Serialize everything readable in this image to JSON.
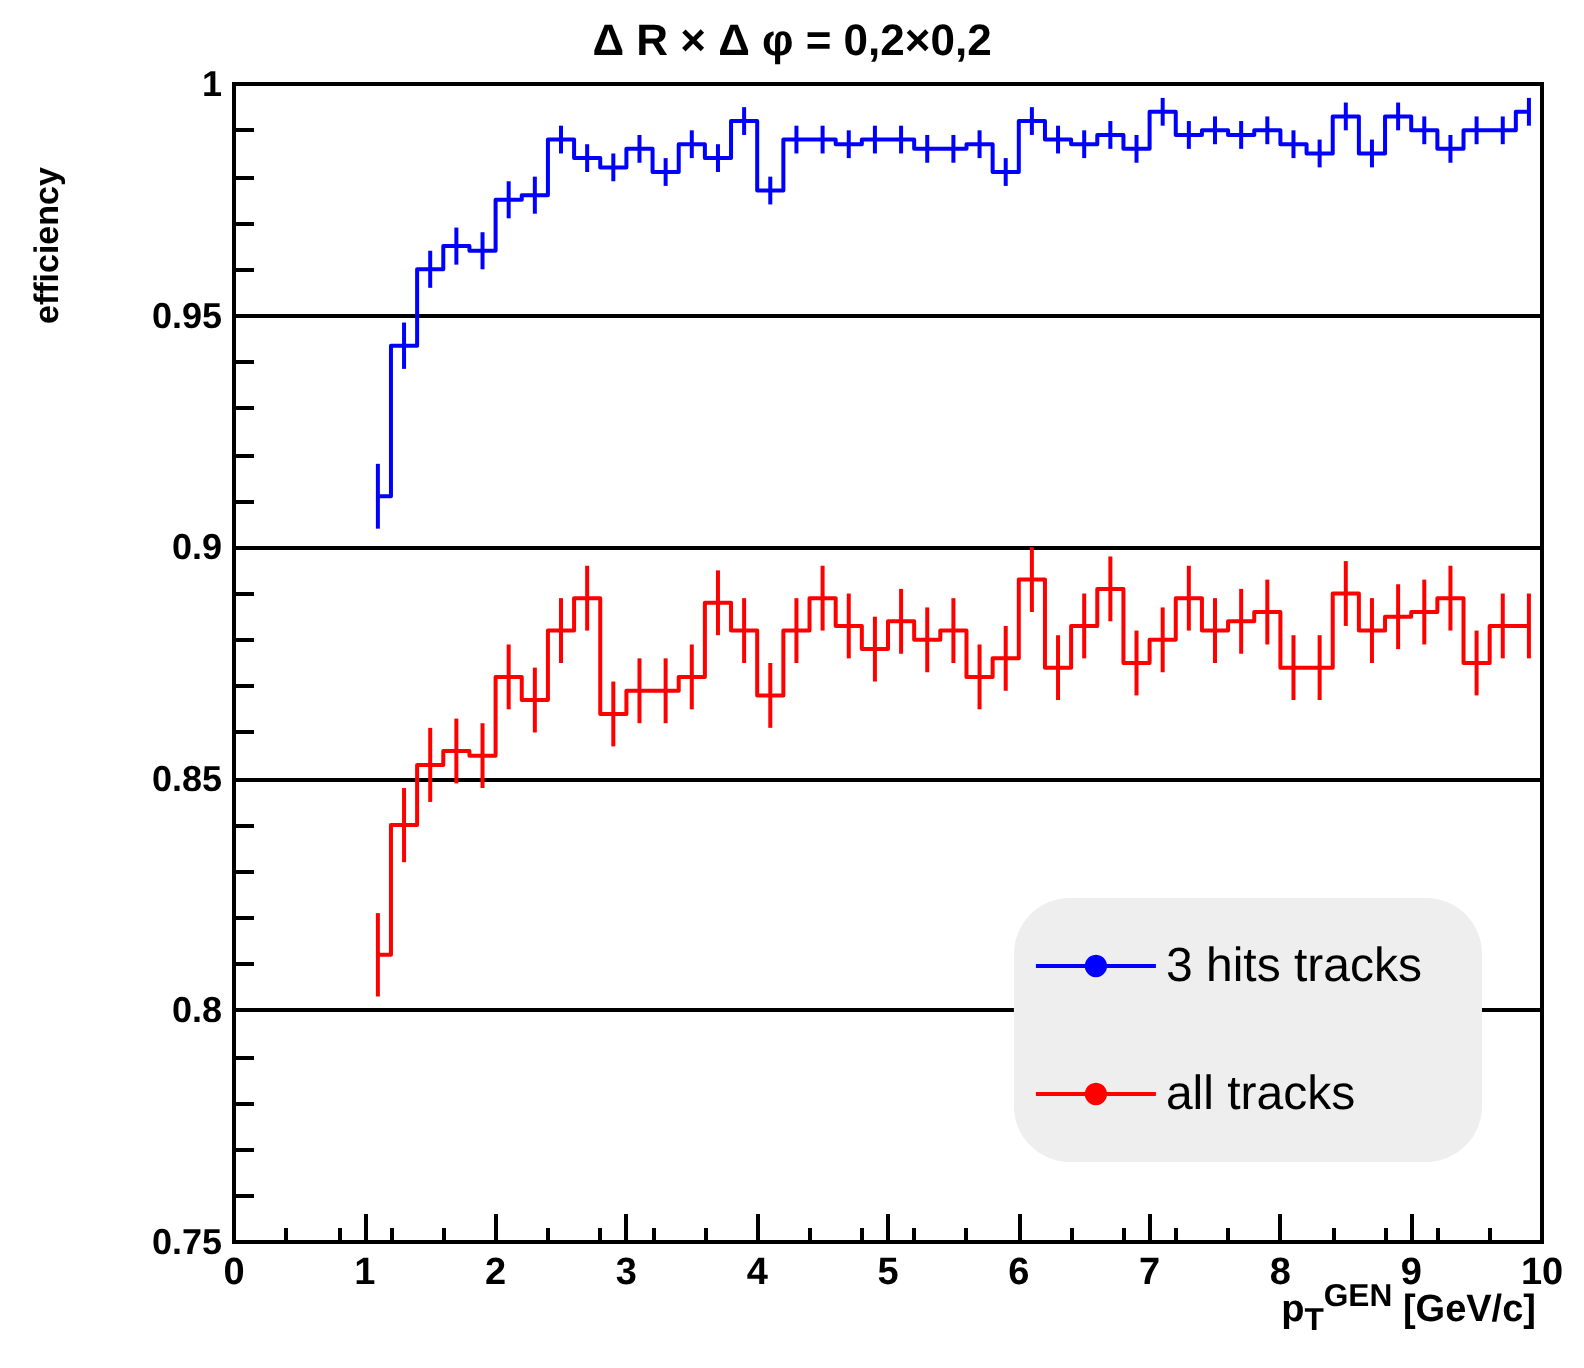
{
  "chart_data": {
    "type": "step",
    "title": "Δ R × Δ φ = 0,2×0,2",
    "xlabel": "p$_{T}$$^{GEN}$   [GeV/c]",
    "ylabel": "efficiency",
    "x": [
      1.1,
      1.3,
      1.5,
      1.7,
      1.9,
      2.1,
      2.3,
      2.5,
      2.7,
      2.9,
      3.1,
      3.3,
      3.5,
      3.7,
      3.9,
      4.1,
      4.3,
      4.5,
      4.7,
      4.9,
      5.1,
      5.3,
      5.5,
      5.7,
      5.9,
      6.1,
      6.3,
      6.5,
      6.7,
      6.9,
      7.1,
      7.3,
      7.5,
      7.7,
      7.9,
      8.1,
      8.3,
      8.5,
      8.7,
      8.9,
      9.1,
      9.3,
      9.5,
      9.7,
      9.9
    ],
    "series": [
      {
        "name": "3 hits tracks",
        "color": "#0000ff",
        "values": [
          0.911,
          0.9435,
          0.96,
          0.965,
          0.964,
          0.975,
          0.976,
          0.988,
          0.984,
          0.982,
          0.986,
          0.981,
          0.987,
          0.984,
          0.992,
          0.977,
          0.988,
          0.988,
          0.987,
          0.988,
          0.988,
          0.986,
          0.986,
          0.987,
          0.981,
          0.992,
          0.988,
          0.987,
          0.989,
          0.986,
          0.994,
          0.989,
          0.99,
          0.989,
          0.99,
          0.987,
          0.985,
          0.993,
          0.985,
          0.993,
          0.99,
          0.986,
          0.99,
          0.99,
          0.994
        ],
        "errors": [
          0.007,
          0.005,
          0.004,
          0.004,
          0.004,
          0.004,
          0.004,
          0.003,
          0.003,
          0.003,
          0.003,
          0.003,
          0.003,
          0.003,
          0.003,
          0.003,
          0.003,
          0.003,
          0.003,
          0.003,
          0.003,
          0.003,
          0.003,
          0.003,
          0.003,
          0.003,
          0.003,
          0.003,
          0.003,
          0.003,
          0.003,
          0.003,
          0.003,
          0.003,
          0.003,
          0.003,
          0.003,
          0.003,
          0.003,
          0.003,
          0.003,
          0.003,
          0.003,
          0.003,
          0.003
        ]
      },
      {
        "name": "all tracks",
        "color": "#ff0000",
        "values": [
          0.812,
          0.84,
          0.853,
          0.856,
          0.855,
          0.872,
          0.867,
          0.882,
          0.889,
          0.864,
          0.869,
          0.869,
          0.872,
          0.888,
          0.882,
          0.868,
          0.882,
          0.889,
          0.883,
          0.878,
          0.884,
          0.88,
          0.882,
          0.872,
          0.876,
          0.893,
          0.874,
          0.883,
          0.891,
          0.875,
          0.88,
          0.889,
          0.882,
          0.884,
          0.886,
          0.874,
          0.874,
          0.89,
          0.882,
          0.885,
          0.886,
          0.889,
          0.875,
          0.883,
          0.883
        ],
        "errors": [
          0.009,
          0.008,
          0.008,
          0.007,
          0.007,
          0.007,
          0.007,
          0.007,
          0.007,
          0.007,
          0.007,
          0.007,
          0.007,
          0.007,
          0.007,
          0.007,
          0.007,
          0.007,
          0.007,
          0.007,
          0.007,
          0.007,
          0.007,
          0.007,
          0.007,
          0.007,
          0.007,
          0.007,
          0.007,
          0.007,
          0.007,
          0.007,
          0.007,
          0.007,
          0.007,
          0.007,
          0.007,
          0.007,
          0.007,
          0.007,
          0.007,
          0.007,
          0.007,
          0.007,
          0.007
        ]
      }
    ],
    "xlim": [
      0,
      10
    ],
    "xticks": [
      0,
      1,
      2,
      3,
      4,
      5,
      6,
      7,
      8,
      9,
      10
    ],
    "ylim": [
      0.75,
      1
    ],
    "yticks": [
      0.75,
      0.8,
      0.85,
      0.9,
      0.95,
      1
    ],
    "grid": "y",
    "legend": "bottom right"
  }
}
